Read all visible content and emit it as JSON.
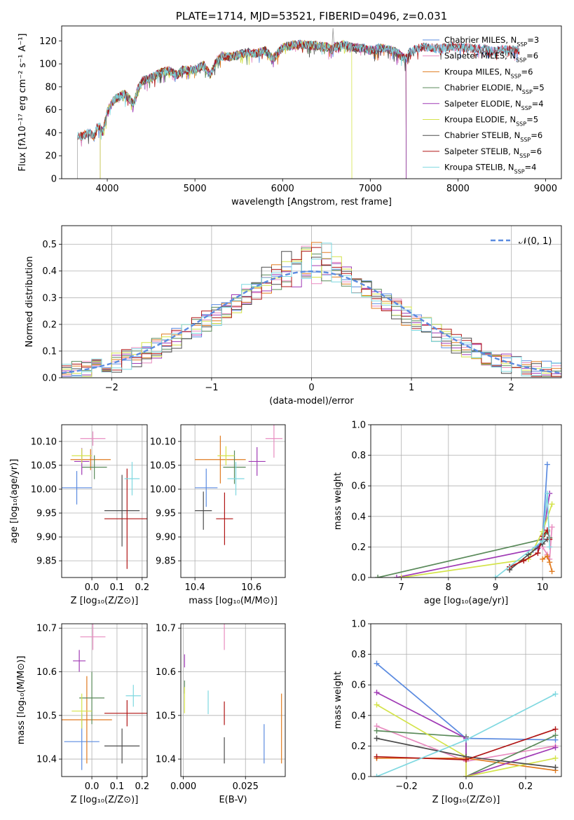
{
  "chart_data": [
    {
      "id": "spectrum",
      "type": "line",
      "title": "PLATE=1714, MJD=53521, FIBERID=0496, z=0.031",
      "xlabel": "wavelength [Angstrom, rest frame]",
      "ylabel": "Flux [fλ10⁻¹⁷ erg cm⁻² s⁻¹ A⁻¹]",
      "xlim": [
        3480,
        9180
      ],
      "ylim": [
        0,
        133
      ],
      "xticks": [
        4000,
        5000,
        6000,
        7000,
        8000,
        9000
      ],
      "yticks": [
        0,
        20,
        40,
        60,
        80,
        100,
        120
      ],
      "grid": false,
      "legend_position": "top-right",
      "continuum": [
        [
          3650,
          38
        ],
        [
          3700,
          37
        ],
        [
          3800,
          40
        ],
        [
          3850,
          36
        ],
        [
          3880,
          44
        ],
        [
          3910,
          46
        ],
        [
          3950,
          40
        ],
        [
          4000,
          58
        ],
        [
          4050,
          66
        ],
        [
          4100,
          70
        ],
        [
          4200,
          74
        ],
        [
          4300,
          65
        ],
        [
          4350,
          78
        ],
        [
          4400,
          85
        ],
        [
          4500,
          88
        ],
        [
          4600,
          92
        ],
        [
          4700,
          94
        ],
        [
          4800,
          90
        ],
        [
          4860,
          95
        ],
        [
          4900,
          94
        ],
        [
          5000,
          95
        ],
        [
          5100,
          99
        ],
        [
          5175,
          90
        ],
        [
          5250,
          103
        ],
        [
          5300,
          107
        ],
        [
          5400,
          106
        ],
        [
          5500,
          108
        ],
        [
          5600,
          110
        ],
        [
          5700,
          109
        ],
        [
          5800,
          112
        ],
        [
          5890,
          104
        ],
        [
          5950,
          110
        ],
        [
          6000,
          114
        ],
        [
          6100,
          116
        ],
        [
          6200,
          117
        ],
        [
          6300,
          116
        ],
        [
          6400,
          116
        ],
        [
          6500,
          115
        ],
        [
          6563,
          112
        ],
        [
          6600,
          115
        ],
        [
          6700,
          117
        ],
        [
          6800,
          114
        ],
        [
          6900,
          114
        ],
        [
          7000,
          112
        ],
        [
          7050,
          112
        ],
        [
          7100,
          114
        ],
        [
          7200,
          113
        ],
        [
          7300,
          110
        ],
        [
          7400,
          104
        ],
        [
          7450,
          110
        ],
        [
          7500,
          112
        ],
        [
          7600,
          115
        ],
        [
          7700,
          114
        ],
        [
          7800,
          113
        ],
        [
          7900,
          115
        ],
        [
          8000,
          115
        ],
        [
          8100,
          114
        ],
        [
          8200,
          113
        ],
        [
          8300,
          113
        ],
        [
          8400,
          111
        ],
        [
          8500,
          113
        ],
        [
          8600,
          112
        ],
        [
          8700,
          112
        ]
      ],
      "series": [
        {
          "name": "Chabrier MILES, N_SSP=3",
          "color": "#5b8be0",
          "range": [
            3700,
            8700
          ]
        },
        {
          "name": "Salpeter MILES, N_SSP=6",
          "color": "#e88cc0",
          "range": [
            3700,
            8700
          ]
        },
        {
          "name": "Kroupa MILES, N_SSP=6",
          "color": "#e07b20",
          "range": [
            3700,
            7410
          ]
        },
        {
          "name": "Chabrier ELODIE, N_SSP=5",
          "color": "#5a8a5a",
          "range": [
            3920,
            7410
          ]
        },
        {
          "name": "Salpeter ELODIE, N_SSP=4",
          "color": "#a03ab5",
          "range": [
            3920,
            7410
          ]
        },
        {
          "name": "Kroupa ELODIE, N_SSP=5",
          "color": "#d4e34a",
          "range": [
            3920,
            6790
          ]
        },
        {
          "name": "Chabrier STELIB, N_SSP=6",
          "color": "#4d4d4d",
          "range": [
            3660,
            8700
          ]
        },
        {
          "name": "Salpeter STELIB, N_SSP=6",
          "color": "#b01515",
          "range": [
            3660,
            8700
          ]
        },
        {
          "name": "Kroupa STELIB, N_SSP=4",
          "color": "#7fd8e0",
          "range": [
            3660,
            8700
          ]
        }
      ]
    },
    {
      "id": "residuals",
      "type": "line",
      "xlabel": "(data-model)/error",
      "ylabel": "Normed distribution",
      "xlim": [
        -2.5,
        2.5
      ],
      "ylim": [
        0,
        0.57
      ],
      "xticks": [
        -2,
        -1,
        0,
        1,
        2
      ],
      "yticks": [
        0.0,
        0.1,
        0.2,
        0.3,
        0.4,
        0.5
      ],
      "grid": true,
      "legend": "𝒩(0, 1)",
      "legend_position": "top-right",
      "reference": "N(0,1) dashed"
    },
    {
      "id": "age_vs_Z",
      "type": "scatter",
      "xlabel": "Z [log₁₀(Z/Z⊙)]",
      "ylabel": "age  [log₁₀(age/yr)]",
      "xlim": [
        -0.12,
        0.22
      ],
      "ylim": [
        9.815,
        10.135
      ],
      "xticks": [
        0.0,
        0.1,
        0.2
      ],
      "yticks": [
        9.85,
        9.9,
        9.95,
        10.0,
        10.05,
        10.1
      ],
      "grid": true,
      "points": [
        {
          "x": -0.06,
          "y": 10.003,
          "xerr": 0.06,
          "yerr": 0.035,
          "color": "#5b8be0"
        },
        {
          "x": 0.004,
          "y": 10.106,
          "xerr": 0.05,
          "yerr": 0.015,
          "color": "#e88cc0"
        },
        {
          "x": -0.005,
          "y": 10.062,
          "xerr": 0.08,
          "yerr": 0.022,
          "color": "#e07b20"
        },
        {
          "x": 0.01,
          "y": 10.046,
          "xerr": 0.05,
          "yerr": 0.025,
          "color": "#5a8a5a"
        },
        {
          "x": -0.04,
          "y": 10.058,
          "xerr": 0.03,
          "yerr": 0.028,
          "color": "#a03ab5"
        },
        {
          "x": -0.04,
          "y": 10.07,
          "xerr": 0.04,
          "yerr": 0.015,
          "color": "#d4e34a"
        },
        {
          "x": 0.12,
          "y": 9.955,
          "xerr": 0.07,
          "yerr": 0.075,
          "color": "#4d4d4d"
        },
        {
          "x": 0.14,
          "y": 9.938,
          "xerr": 0.09,
          "yerr": 0.105,
          "color": "#b01515"
        },
        {
          "x": 0.16,
          "y": 10.022,
          "xerr": 0.03,
          "yerr": 0.035,
          "color": "#7fd8e0"
        }
      ]
    },
    {
      "id": "age_vs_mass",
      "type": "scatter",
      "xlabel": "mass [log₁₀(M/M⊙)]",
      "ylabel": "",
      "xlim": [
        10.35,
        10.72
      ],
      "ylim": [
        9.815,
        10.135
      ],
      "xticks": [
        10.4,
        10.6
      ],
      "yticks": [
        9.85,
        9.9,
        9.95,
        10.0,
        10.05,
        10.1
      ],
      "grid": true,
      "points": [
        {
          "x": 10.44,
          "y": 10.003,
          "xerr": 0.04,
          "yerr": 0.04,
          "color": "#5b8be0"
        },
        {
          "x": 10.68,
          "y": 10.106,
          "xerr": 0.03,
          "yerr": 0.04,
          "color": "#e88cc0"
        },
        {
          "x": 10.49,
          "y": 10.062,
          "xerr": 0.09,
          "yerr": 0.05,
          "color": "#e07b20"
        },
        {
          "x": 10.54,
          "y": 10.046,
          "xerr": 0.04,
          "yerr": 0.035,
          "color": "#5a8a5a"
        },
        {
          "x": 10.62,
          "y": 10.058,
          "xerr": 0.03,
          "yerr": 0.03,
          "color": "#a03ab5"
        },
        {
          "x": 10.51,
          "y": 10.07,
          "xerr": 0.03,
          "yerr": 0.02,
          "color": "#d4e34a"
        },
        {
          "x": 10.43,
          "y": 9.955,
          "xerr": 0.03,
          "yerr": 0.04,
          "color": "#4d4d4d"
        },
        {
          "x": 10.505,
          "y": 9.938,
          "xerr": 0.03,
          "yerr": 0.055,
          "color": "#b01515"
        },
        {
          "x": 10.545,
          "y": 10.022,
          "xerr": 0.03,
          "yerr": 0.035,
          "color": "#7fd8e0"
        }
      ]
    },
    {
      "id": "weight_vs_age",
      "type": "line",
      "xlabel": "age  [log₁₀(age/yr)]",
      "ylabel": "mass weight",
      "xlim": [
        6.35,
        10.4
      ],
      "ylim": [
        0,
        1.0
      ],
      "xticks": [
        7,
        8,
        9,
        10
      ],
      "yticks": [
        0.0,
        0.2,
        0.4,
        0.6,
        0.8,
        1.0
      ],
      "grid": true,
      "series": [
        {
          "color": "#5b8be0",
          "points": [
            [
              9.8,
              0.18
            ],
            [
              10.0,
              0.24
            ],
            [
              10.1,
              0.74
            ]
          ]
        },
        {
          "color": "#e88cc0",
          "points": [
            [
              10.0,
              0.2
            ],
            [
              10.1,
              0.15
            ],
            [
              10.15,
              0.12
            ],
            [
              10.2,
              0.33
            ]
          ]
        },
        {
          "color": "#e07b20",
          "points": [
            [
              10.0,
              0.12
            ],
            [
              10.1,
              0.14
            ],
            [
              10.15,
              0.1
            ],
            [
              10.2,
              0.04
            ]
          ]
        },
        {
          "color": "#5a8a5a",
          "points": [
            [
              6.5,
              0.0
            ],
            [
              10.0,
              0.25
            ],
            [
              10.1,
              0.3
            ],
            [
              10.15,
              0.26
            ]
          ]
        },
        {
          "color": "#a03ab5",
          "points": [
            [
              6.9,
              0.0
            ],
            [
              9.9,
              0.19
            ],
            [
              10.0,
              0.25
            ],
            [
              10.15,
              0.55
            ]
          ]
        },
        {
          "color": "#d4e34a",
          "points": [
            [
              7.0,
              0.0
            ],
            [
              9.7,
              0.12
            ],
            [
              10.0,
              0.3
            ],
            [
              10.2,
              0.48
            ]
          ]
        },
        {
          "color": "#4d4d4d",
          "points": [
            [
              9.3,
              0.05
            ],
            [
              9.7,
              0.15
            ],
            [
              10.0,
              0.22
            ],
            [
              10.1,
              0.25
            ]
          ]
        },
        {
          "color": "#b01515",
          "points": [
            [
              9.3,
              0.07
            ],
            [
              9.6,
              0.11
            ],
            [
              9.9,
              0.16
            ],
            [
              10.0,
              0.27
            ],
            [
              10.1,
              0.31
            ],
            [
              10.15,
              0.25
            ]
          ]
        },
        {
          "color": "#7fd8e0",
          "points": [
            [
              9.0,
              0.0
            ],
            [
              10.0,
              0.24
            ],
            [
              10.1,
              0.55
            ],
            [
              10.15,
              0.2
            ]
          ]
        }
      ]
    },
    {
      "id": "mass_vs_Z",
      "type": "scatter",
      "xlabel": "Z [log₁₀(Z/Z⊙)]",
      "ylabel": "mass [log₁₀(M/M⊙)]",
      "xlim": [
        -0.12,
        0.22
      ],
      "ylim": [
        10.36,
        10.71
      ],
      "xticks": [
        0.0,
        0.1,
        0.2
      ],
      "yticks": [
        10.4,
        10.5,
        10.6,
        10.7
      ],
      "grid": true,
      "points": [
        {
          "x": -0.04,
          "y": 10.44,
          "xerr": 0.07,
          "yerr": 0.065,
          "color": "#5b8be0"
        },
        {
          "x": 0.004,
          "y": 10.68,
          "xerr": 0.05,
          "yerr": 0.03,
          "color": "#e88cc0"
        },
        {
          "x": -0.02,
          "y": 10.49,
          "xerr": 0.1,
          "yerr": 0.1,
          "color": "#e07b20"
        },
        {
          "x": 0.0,
          "y": 10.54,
          "xerr": 0.05,
          "yerr": 0.06,
          "color": "#5a8a5a"
        },
        {
          "x": -0.05,
          "y": 10.625,
          "xerr": 0.025,
          "yerr": 0.025,
          "color": "#a03ab5"
        },
        {
          "x": -0.04,
          "y": 10.51,
          "xerr": 0.04,
          "yerr": 0.04,
          "color": "#d4e34a"
        },
        {
          "x": 0.12,
          "y": 10.43,
          "xerr": 0.07,
          "yerr": 0.04,
          "color": "#4d4d4d"
        },
        {
          "x": 0.14,
          "y": 10.505,
          "xerr": 0.09,
          "yerr": 0.03,
          "color": "#b01515"
        },
        {
          "x": 0.165,
          "y": 10.545,
          "xerr": 0.03,
          "yerr": 0.025,
          "color": "#7fd8e0"
        }
      ]
    },
    {
      "id": "mass_vs_EBV",
      "type": "scatter",
      "xlabel": "E(B-V)",
      "ylabel": "",
      "xlim": [
        -0.001,
        0.041
      ],
      "ylim": [
        10.36,
        10.71
      ],
      "xticks": [
        0.0,
        0.025
      ],
      "yticks": [
        10.4,
        10.5,
        10.6,
        10.7
      ],
      "grid": true,
      "points": [
        {
          "x": 0.0325,
          "y": 10.435,
          "yerr": 0.045,
          "color": "#5b8be0"
        },
        {
          "x": 0.0165,
          "y": 10.68,
          "yerr": 0.03,
          "color": "#e88cc0"
        },
        {
          "x": 0.0395,
          "y": 10.47,
          "yerr": 0.08,
          "color": "#e07b20"
        },
        {
          "x": 0.0005,
          "y": 10.565,
          "yerr": 0.015,
          "color": "#5a8a5a"
        },
        {
          "x": 0.0005,
          "y": 10.625,
          "yerr": 0.015,
          "color": "#a03ab5"
        },
        {
          "x": 0.0005,
          "y": 10.535,
          "yerr": 0.03,
          "color": "#d4e34a"
        },
        {
          "x": 0.0165,
          "y": 10.42,
          "yerr": 0.03,
          "color": "#4d4d4d"
        },
        {
          "x": 0.0165,
          "y": 10.505,
          "yerr": 0.027,
          "color": "#b01515"
        },
        {
          "x": 0.01,
          "y": 10.53,
          "yerr": 0.027,
          "color": "#7fd8e0"
        }
      ]
    },
    {
      "id": "weight_vs_Z",
      "type": "line",
      "xlabel": "Z [log₁₀(Z/Z⊙)]",
      "ylabel": "mass weight",
      "xlim": [
        -0.32,
        0.32
      ],
      "ylim": [
        0,
        1.0
      ],
      "xticks": [
        -0.2,
        0.0,
        0.2
      ],
      "yticks": [
        0.0,
        0.2,
        0.4,
        0.6,
        0.8,
        1.0
      ],
      "grid": true,
      "series": [
        {
          "color": "#5b8be0",
          "points": [
            [
              -0.3,
              0.74
            ],
            [
              0.0,
              0.25
            ],
            [
              0.3,
              0.24
            ]
          ]
        },
        {
          "color": "#e88cc0",
          "points": [
            [
              -0.3,
              0.33
            ],
            [
              0.0,
              0.1
            ],
            [
              0.3,
              0.2
            ]
          ]
        },
        {
          "color": "#e07b20",
          "points": [
            [
              -0.3,
              0.12
            ],
            [
              0.0,
              0.12
            ],
            [
              0.3,
              0.04
            ]
          ]
        },
        {
          "color": "#5a8a5a",
          "points": [
            [
              -0.3,
              0.3
            ],
            [
              0.0,
              0.26
            ],
            [
              0.0,
              0.0
            ],
            [
              0.3,
              0.27
            ]
          ]
        },
        {
          "color": "#a03ab5",
          "points": [
            [
              -0.3,
              0.55
            ],
            [
              0.0,
              0.25
            ],
            [
              0.0,
              0.0
            ],
            [
              0.3,
              0.19
            ]
          ]
        },
        {
          "color": "#d4e34a",
          "points": [
            [
              -0.3,
              0.47
            ],
            [
              0.0,
              0.13
            ],
            [
              0.0,
              0.0
            ],
            [
              0.3,
              0.12
            ]
          ]
        },
        {
          "color": "#4d4d4d",
          "points": [
            [
              -0.3,
              0.25
            ],
            [
              0.0,
              0.13
            ],
            [
              0.3,
              0.06
            ]
          ]
        },
        {
          "color": "#b01515",
          "points": [
            [
              -0.3,
              0.13
            ],
            [
              0.0,
              0.11
            ],
            [
              0.3,
              0.31
            ]
          ]
        },
        {
          "color": "#7fd8e0",
          "points": [
            [
              -0.3,
              0.0
            ],
            [
              0.0,
              0.24
            ],
            [
              0.3,
              0.54
            ]
          ]
        }
      ]
    }
  ]
}
